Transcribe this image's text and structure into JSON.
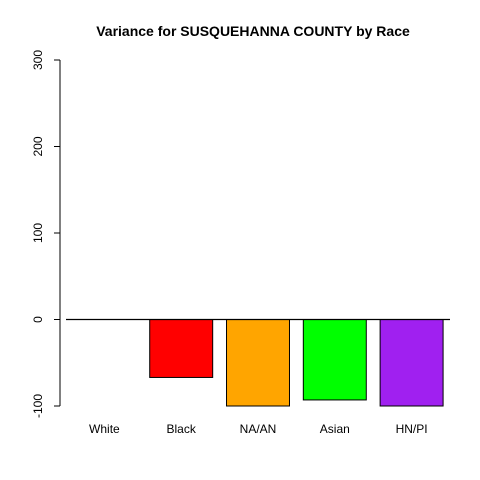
{
  "chart_data": {
    "type": "bar",
    "title": "Variance for SUSQUEHANNA COUNTY by Race",
    "xlabel": "",
    "ylabel": "",
    "categories": [
      "White",
      "Black",
      "NA/AN",
      "Asian",
      "HN/PI"
    ],
    "values": [
      0,
      -67,
      -100,
      -93,
      -100
    ],
    "colors": [
      "#ffffff",
      "#ff0000",
      "#ffa500",
      "#00ff00",
      "#a020f0"
    ],
    "ylim": [
      -100,
      300
    ],
    "yticks": [
      -100,
      0,
      100,
      200,
      300
    ],
    "grid": false,
    "legend": "none"
  }
}
